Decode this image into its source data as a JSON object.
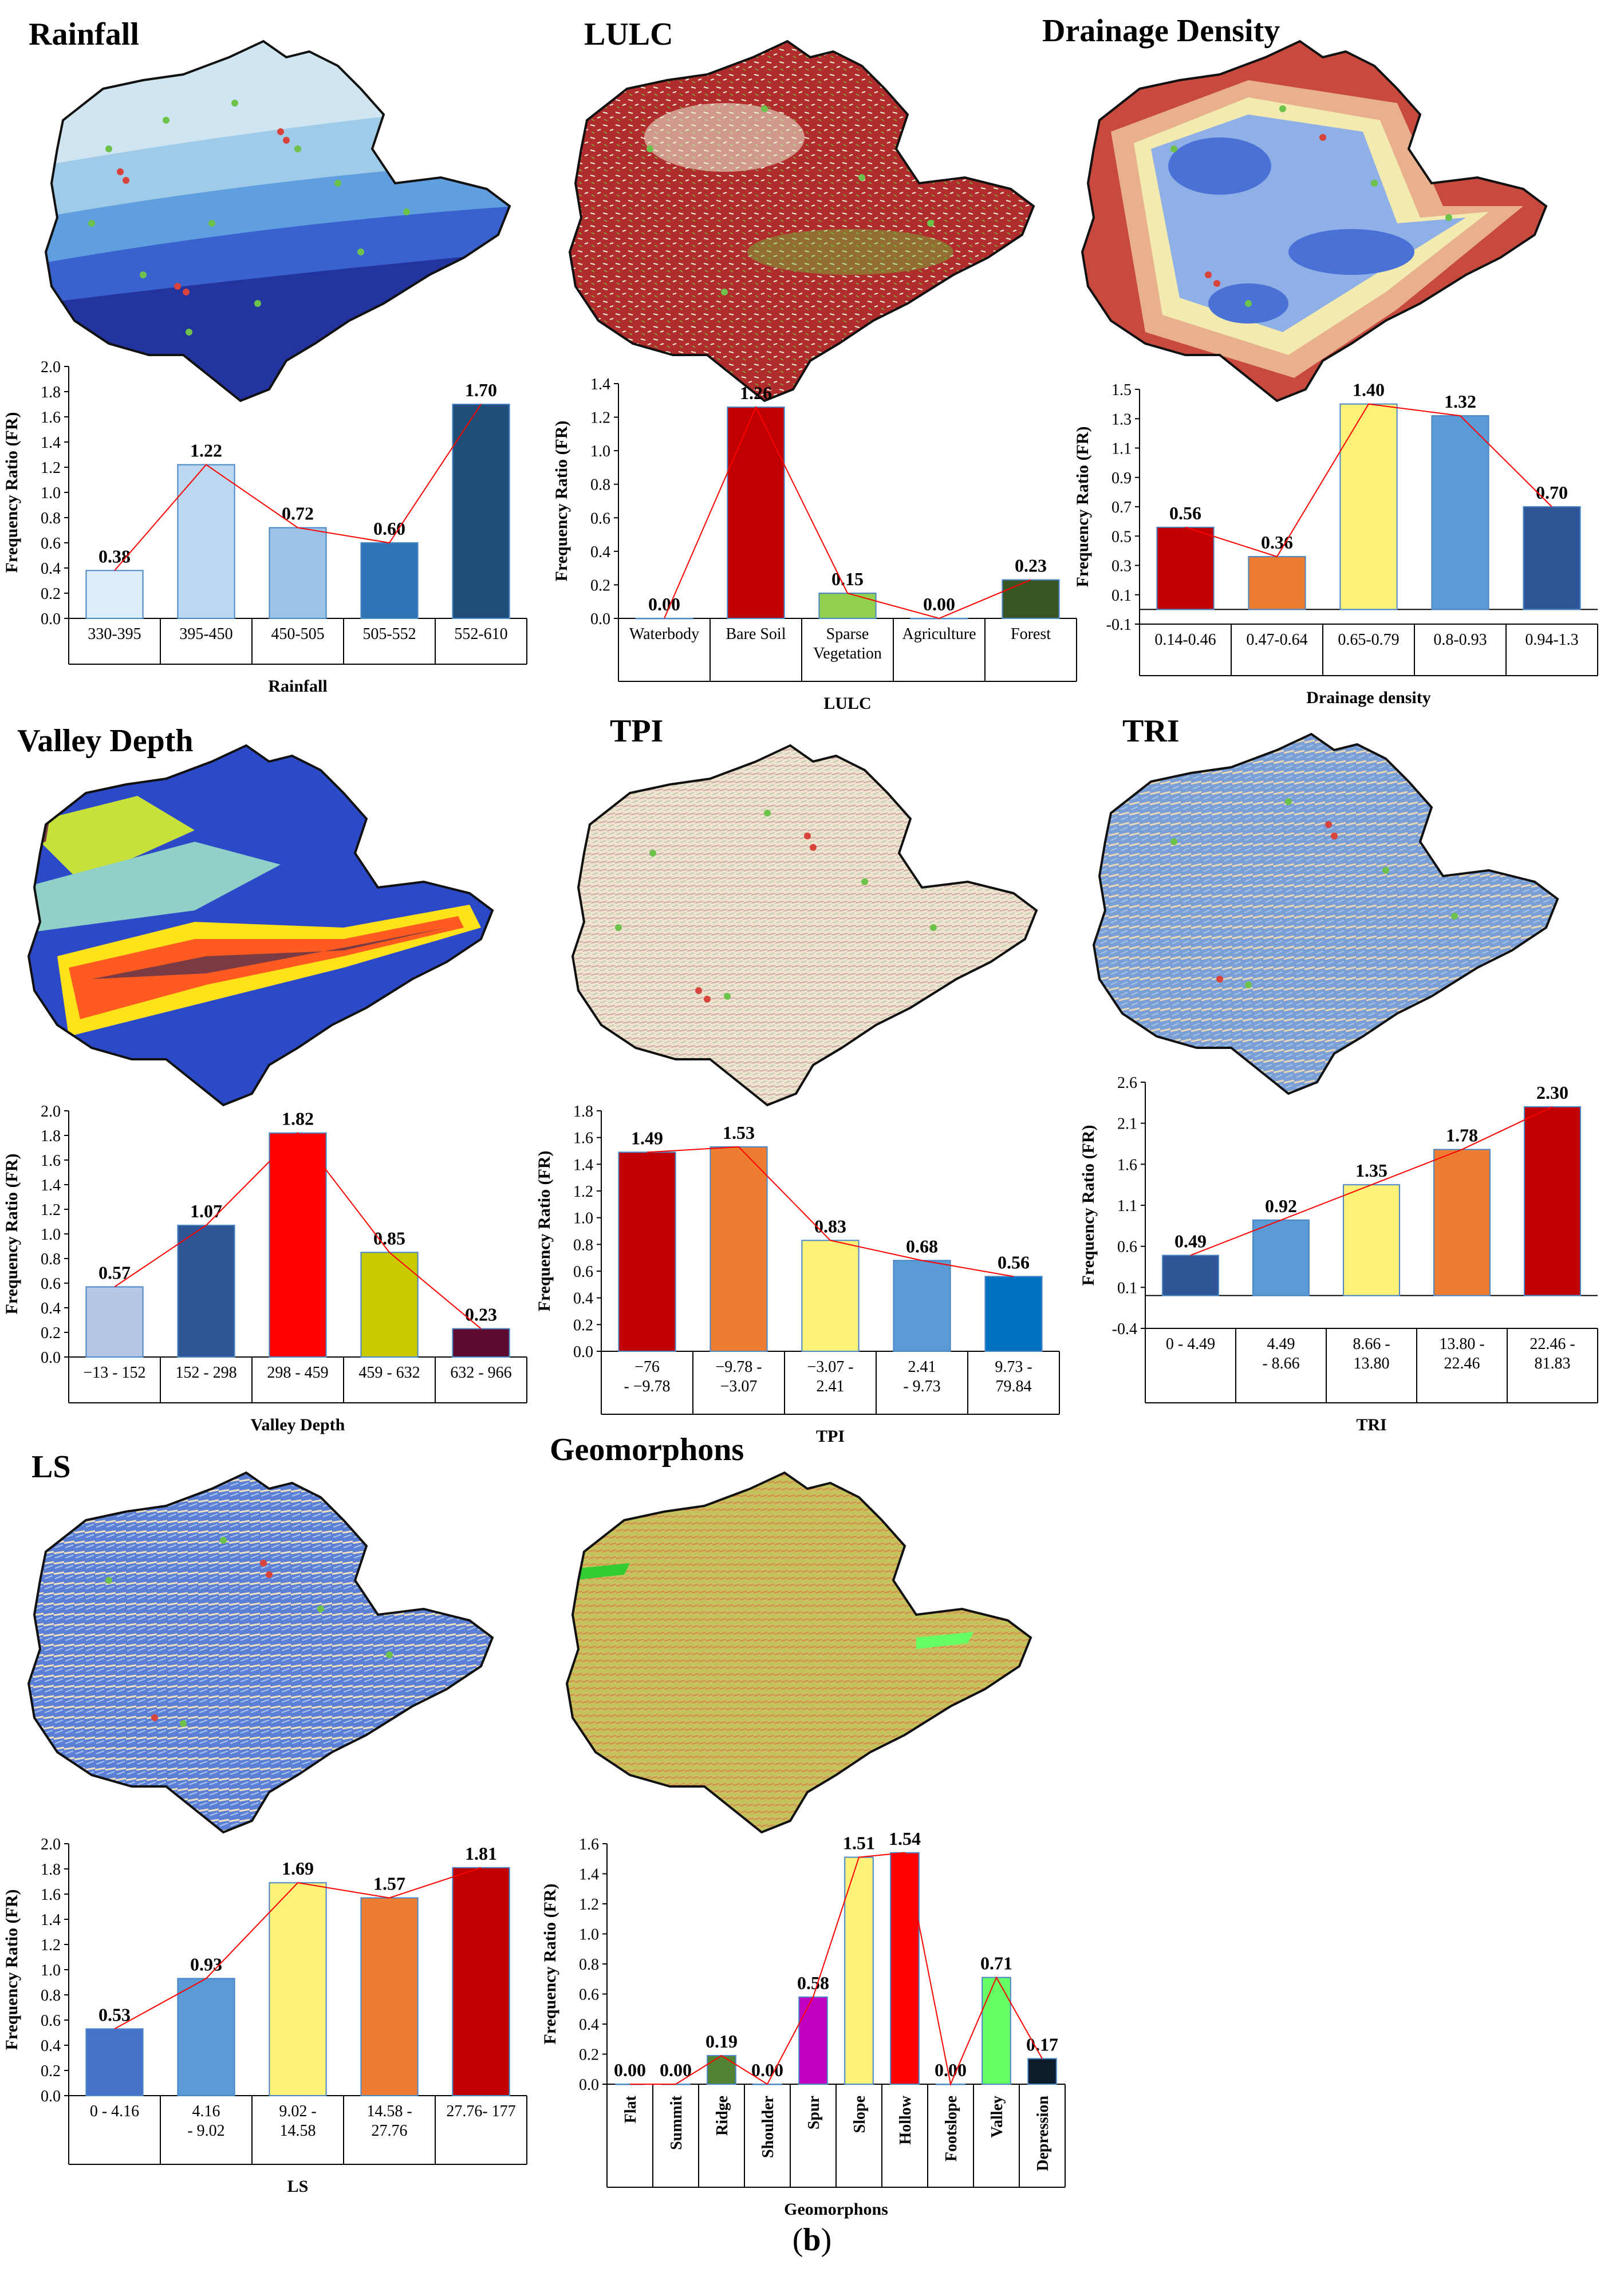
{
  "caption": {
    "open": "(",
    "letter": "b",
    "close": ")"
  },
  "colors": {
    "rainfall_map": [
      "#cfe6f2",
      "#9fcbe9",
      "#5f9fe0",
      "#3a62cf",
      "#24349e"
    ],
    "lulc_map": [
      "#b12d2d",
      "#e9f3d9",
      "#6fbf3a"
    ],
    "drainage_map": [
      "#c84a3e",
      "#e8b08c",
      "#f3eab0",
      "#8fb0e6",
      "#4a72d6"
    ],
    "valley_map": [
      "#2c49c8",
      "#8fd0c8",
      "#ff5a1f",
      "#ffe21a",
      "#7a3b44",
      "#c8e03a"
    ],
    "tpi_map": [
      "#efe3cf",
      "#d7b79c",
      "#c9a7a0",
      "#b5c9a5"
    ],
    "tri_map": [
      "#6c93cf",
      "#a9c5e8",
      "#e9d7b8",
      "#d9a07a"
    ],
    "ls_map": [
      "#5b7fd4",
      "#a7c3ec",
      "#efe1c2",
      "#d7a77d"
    ],
    "geomorphon_map": [
      "#c9c060",
      "#d4884a",
      "#b7c955",
      "#e0b86a",
      "#9aa63c"
    ],
    "point_green": "#6dc24b",
    "point_red": "#d8443c",
    "line_red": "#ff0000"
  },
  "chart_data": [
    {
      "id": "rainfall",
      "panel_title": "Rainfall",
      "type": "bar",
      "categories": [
        "330-395",
        "395-450",
        "450-505",
        "505-552",
        "552-610"
      ],
      "values": [
        0.38,
        1.22,
        0.72,
        0.6,
        1.7
      ],
      "labels": [
        "0.38",
        "1.22",
        "0.72",
        "0.60",
        "1.70"
      ],
      "colors": [
        "#dceefa",
        "#bcd8f0",
        "#9cc3e6",
        "#2e75b6",
        "#1f4e79"
      ],
      "xlabel": "Rainfall",
      "ylabel": "Frequency Ratio (FR)",
      "ylim": [
        0,
        2.0
      ],
      "yticks": [
        "0.0",
        "0.2",
        "0.4",
        "0.6",
        "0.8",
        "1.0",
        "1.2",
        "1.4",
        "1.6",
        "1.8",
        "2.0"
      ],
      "yticks_num": [
        0,
        0.2,
        0.4,
        0.6,
        0.8,
        1.0,
        1.2,
        1.4,
        1.6,
        1.8,
        2.0
      ]
    },
    {
      "id": "lulc",
      "panel_title": "LULC",
      "type": "bar",
      "categories": [
        "Waterbody",
        "Bare Soil",
        "Sparse Vegetation",
        "Agriculture",
        "Forest"
      ],
      "values": [
        0.0,
        1.26,
        0.15,
        0.0,
        0.23
      ],
      "labels": [
        "0.00",
        "1.26",
        "0.15",
        "0.00",
        "0.23"
      ],
      "colors": [
        "#4472c4",
        "#c00000",
        "#92d050",
        "#ffc000",
        "#375623"
      ],
      "xlabel": "LULC",
      "ylabel": "Frequency Ratio (FR)",
      "ylim": [
        0,
        1.4
      ],
      "yticks": [
        "0.0",
        "0.2",
        "0.4",
        "0.6",
        "0.8",
        "1.0",
        "1.2",
        "1.4"
      ],
      "yticks_num": [
        0,
        0.2,
        0.4,
        0.6,
        0.8,
        1.0,
        1.2,
        1.4
      ]
    },
    {
      "id": "drainage",
      "panel_title": "Drainage Density",
      "type": "bar",
      "categories": [
        "0.14-0.46",
        "0.47-0.64",
        "0.65-0.79",
        "0.8-0.93",
        "0.94-1.3"
      ],
      "values": [
        0.56,
        0.36,
        1.4,
        1.32,
        0.7
      ],
      "labels": [
        "0.56",
        "0.36",
        "1.40",
        "1.32",
        "0.70"
      ],
      "colors": [
        "#c00000",
        "#ed7d31",
        "#fff27a",
        "#5b9bd5",
        "#2f5597"
      ],
      "xlabel": "Drainage density",
      "ylabel": "Frequency Ratio (FR)",
      "ylim": [
        -0.1,
        1.5
      ],
      "yticks": [
        "-0.1",
        "0.1",
        "0.3",
        "0.5",
        "0.7",
        "0.9",
        "1.1",
        "1.3",
        "1.5"
      ],
      "yticks_num": [
        -0.1,
        0.1,
        0.3,
        0.5,
        0.7,
        0.9,
        1.1,
        1.3,
        1.5
      ]
    },
    {
      "id": "valley",
      "panel_title": "Valley Depth",
      "type": "bar",
      "categories": [
        "−13 - 152",
        "152 - 298",
        "298 - 459",
        "459 - 632",
        "632 - 966"
      ],
      "values": [
        0.57,
        1.07,
        1.82,
        0.85,
        0.23
      ],
      "labels": [
        "0.57",
        "1.07",
        "1.82",
        "0.85",
        "0.23"
      ],
      "colors": [
        "#b4c7e7",
        "#2f5597",
        "#ff0000",
        "#c9c900",
        "#5c0a2e"
      ],
      "xlabel": "Valley Depth",
      "ylabel": "Frequency Ratio (FR)",
      "ylim": [
        0,
        2.0
      ],
      "yticks": [
        "0.0",
        "0.2",
        "0.4",
        "0.6",
        "0.8",
        "1.0",
        "1.2",
        "1.4",
        "1.6",
        "1.8",
        "2.0"
      ],
      "yticks_num": [
        0,
        0.2,
        0.4,
        0.6,
        0.8,
        1.0,
        1.2,
        1.4,
        1.6,
        1.8,
        2.0
      ]
    },
    {
      "id": "tpi",
      "panel_title": "TPI",
      "type": "bar",
      "categories": [
        "−76 - −9.78",
        "−9.78 - −3.07",
        "−3.07 - 2.41",
        "2.41 - 9.73",
        "9.73 - 79.84"
      ],
      "values": [
        1.49,
        1.53,
        0.83,
        0.68,
        0.56
      ],
      "labels": [
        "1.49",
        "1.53",
        "0.83",
        "0.68",
        "0.56"
      ],
      "colors": [
        "#c00000",
        "#ed7d31",
        "#fff27a",
        "#5b9bd5",
        "#0070c0"
      ],
      "xlabel": "TPI",
      "ylabel": "Frequency Ratio (FR)",
      "ylim": [
        0,
        1.8
      ],
      "yticks": [
        "0.0",
        "0.2",
        "0.4",
        "0.6",
        "0.8",
        "1.0",
        "1.2",
        "1.4",
        "1.6",
        "1.8"
      ],
      "yticks_num": [
        0,
        0.2,
        0.4,
        0.6,
        0.8,
        1.0,
        1.2,
        1.4,
        1.6,
        1.8
      ]
    },
    {
      "id": "tri",
      "panel_title": "TRI",
      "type": "bar",
      "categories": [
        "0 - 4.49",
        "4.49 - 8.66",
        "8.66 - 13.80",
        "13.80 - 22.46",
        "22.46 - 81.83"
      ],
      "values": [
        0.49,
        0.92,
        1.35,
        1.78,
        2.3
      ],
      "labels": [
        "0.49",
        "0.92",
        "1.35",
        "1.78",
        "2.30"
      ],
      "colors": [
        "#2f5597",
        "#5b9bd5",
        "#fff27a",
        "#ed7d31",
        "#c00000"
      ],
      "xlabel": "TRI",
      "ylabel": "Frequency Ratio (FR)",
      "ylim": [
        -0.4,
        2.6
      ],
      "yticks": [
        "-0.4",
        "0.1",
        "0.6",
        "1.1",
        "1.6",
        "2.1",
        "2.6"
      ],
      "yticks_num": [
        -0.4,
        0.1,
        0.6,
        1.1,
        1.6,
        2.1,
        2.6
      ]
    },
    {
      "id": "ls",
      "panel_title": "LS",
      "type": "bar",
      "categories": [
        "0 - 4.16",
        "4.16 - 9.02",
        "9.02 - 14.58",
        "14.58 - 27.76",
        "27.76- 177"
      ],
      "values": [
        0.53,
        0.93,
        1.69,
        1.57,
        1.81
      ],
      "labels": [
        "0.53",
        "0.93",
        "1.69",
        "1.57",
        "1.81"
      ],
      "colors": [
        "#4472c4",
        "#5b9bd5",
        "#fff27a",
        "#ed7d31",
        "#c00000"
      ],
      "xlabel": "LS",
      "ylabel": "Frequency Ratio (FR)",
      "ylim": [
        0,
        2.0
      ],
      "yticks": [
        "0.0",
        "0.2",
        "0.4",
        "0.6",
        "0.8",
        "1.0",
        "1.2",
        "1.4",
        "1.6",
        "1.8",
        "2.0"
      ],
      "yticks_num": [
        0,
        0.2,
        0.4,
        0.6,
        0.8,
        1.0,
        1.2,
        1.4,
        1.6,
        1.8,
        2.0
      ]
    },
    {
      "id": "geomorphons",
      "panel_title": "Geomorphons",
      "type": "bar",
      "categories": [
        "Flat",
        "Summit",
        "Ridge",
        "Shoulder",
        "Spur",
        "Slope",
        "Hollow",
        "Footslope",
        "Valley",
        "Depression"
      ],
      "values": [
        0.0,
        0.0,
        0.19,
        0.0,
        0.58,
        1.51,
        1.54,
        0.0,
        0.71,
        0.17
      ],
      "labels": [
        "0.00",
        "0.00",
        "0.19",
        "0.00",
        "0.58",
        "1.51",
        "1.54",
        "0.00",
        "0.71",
        "0.17"
      ],
      "colors": [
        "#a6a6a6",
        "#7f7f7f",
        "#548235",
        "#bf9000",
        "#c000c0",
        "#fff27a",
        "#ff0000",
        "#f4b183",
        "#66ff66",
        "#0d1b2a"
      ],
      "xlabel": "Geomorphons",
      "ylabel": "Frequency Ratio (FR)",
      "ylim": [
        0,
        1.6
      ],
      "yticks": [
        "0.0",
        "0.2",
        "0.4",
        "0.6",
        "0.8",
        "1.0",
        "1.2",
        "1.4",
        "1.6"
      ],
      "yticks_num": [
        0,
        0.2,
        0.4,
        0.6,
        0.8,
        1.0,
        1.2,
        1.4,
        1.6
      ]
    }
  ]
}
